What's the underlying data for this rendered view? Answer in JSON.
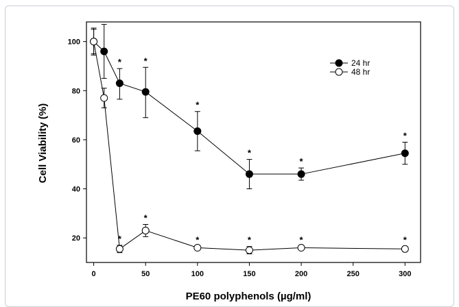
{
  "chart_data": {
    "type": "line",
    "title": "",
    "xlabel": "PE60 polyphenols (µg/ml)",
    "ylabel": "Cell Viability (%)",
    "xlim": [
      -7,
      315
    ],
    "ylim": [
      10,
      108
    ],
    "x_ticks": [
      "0",
      "50",
      "100",
      "150",
      "200",
      "250",
      "300"
    ],
    "y_ticks": [
      "20",
      "40",
      "60",
      "80",
      "100"
    ],
    "grid": false,
    "legend_position": "top-right",
    "significance_marker": "*",
    "series": [
      {
        "name": "24 hr",
        "marker": "filled-circle",
        "color": "#000000",
        "x": [
          0,
          10,
          25,
          50,
          100,
          150,
          200,
          300
        ],
        "y": [
          100,
          96,
          83,
          79.5,
          63.5,
          46,
          46,
          54.5
        ],
        "err_up": [
          5,
          11,
          6,
          10,
          8,
          6,
          2.5,
          4.5
        ],
        "err_down": [
          5,
          11,
          6.5,
          10.5,
          8,
          6,
          2.5,
          4.5
        ],
        "significant": [
          false,
          false,
          true,
          true,
          true,
          true,
          true,
          true
        ]
      },
      {
        "name": "48 hr",
        "marker": "open-circle",
        "color": "#000000",
        "x": [
          0,
          10,
          25,
          50,
          100,
          150,
          200,
          300
        ],
        "y": [
          100,
          77,
          15.5,
          23,
          16,
          15,
          16,
          15.5
        ],
        "err_up": [
          5.5,
          4,
          1.5,
          2.5,
          0.5,
          1.5,
          0.5,
          1
        ],
        "err_down": [
          5.5,
          4,
          1.5,
          2.5,
          0.5,
          1.5,
          0.5,
          1
        ],
        "significant": [
          false,
          false,
          true,
          true,
          true,
          true,
          true,
          true
        ]
      }
    ]
  }
}
